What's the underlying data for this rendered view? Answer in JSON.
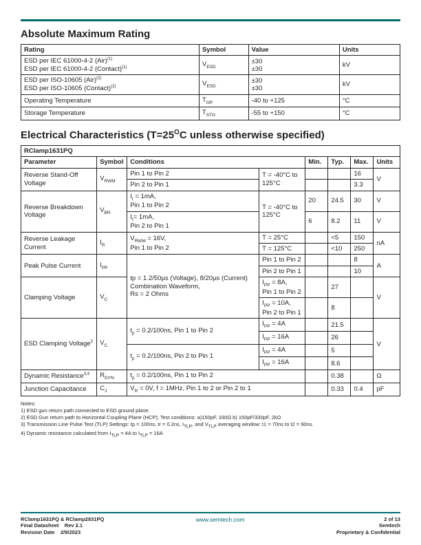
{
  "section1_title": "Absolute Maximum Rating",
  "amr": {
    "headers": [
      "Rating",
      "Symbol",
      "Value",
      "Units"
    ],
    "rows": [
      {
        "rating_html": "ESD per IEC 61000-4-2 (Air)<span class='sup'>(1)</span><br>ESD per IEC 61000-4-2 (Contact)<span class='sup'>(1)</span>",
        "symbol_html": "V<span class='sub'>ESD</span>",
        "value": "±30<br>±30",
        "units": "kV"
      },
      {
        "rating_html": "ESD per ISO-10605 (Air)<span class='sup'>(2)</span><br>ESD per ISO-10605 (Contact)<span class='sup'>(2)</span>",
        "symbol_html": "V<span class='sub'>ESD</span>",
        "value": "±30<br>±30",
        "units": "kV"
      },
      {
        "rating_html": "Operating Temperature",
        "symbol_html": "T<span class='sub'>OP</span>",
        "value": "-40 to +125",
        "units": "°C"
      },
      {
        "rating_html": "Storage Temperature",
        "symbol_html": "T<span class='sub'>STG</span>",
        "value": "-55 to +150",
        "units": "°C"
      }
    ]
  },
  "section2_title_html": "Electrical Characteristics (T=25<span style='font-size:10px;vertical-align:super'>O</span>C unless otherwise specified)",
  "partname": "RClamp1631PQ",
  "ec_headers": [
    "Parameter",
    "Symbol",
    "Conditions",
    "Min.",
    "Typ.",
    "Max.",
    "Units"
  ],
  "ec_rows": {
    "rswo_param": "Reverse Stand-Off Voltage",
    "rswo_sym": "V<span class='sub'>RWM</span>",
    "rswo_c1a": "Pin 1 to Pin 2",
    "rswo_c1b": "Pin 2 to Pin 1",
    "rswo_c2": "T = -40°C to 125°C",
    "rswo_max1": "16",
    "rswo_max2": "3.3",
    "rswo_u": "V",
    "rbv_param": "Reverse Breakdown Voltage",
    "rbv_sym": "V<span class='sub'>BR</span>",
    "rbv_c1a": "I<span class='sub'>t</span> = 1mA,<br>Pin 1 to Pin 2",
    "rbv_c1b": "I<span class='sub'>t</span>= 1mA,<br>Pin 2 to Pin 1",
    "rbv_c2": "T = -40°C to 125°C",
    "rbv_min1": "20",
    "rbv_typ1": "24.5",
    "rbv_max1": "30",
    "rbv_min2": "6",
    "rbv_typ2": "8.2",
    "rbv_max2": "11",
    "rbv_u": "V",
    "rlc_param": "Reverse Leakage Current",
    "rlc_sym": "I<span class='sub'>R</span>",
    "rlc_c1": "V<span class='sub'>RWM</span> = 16V,<br>Pin 1 to Pin 2",
    "rlc_c2a": "T = 25°C",
    "rlc_c2b": "T = 125°C",
    "rlc_typ1": "<5",
    "rlc_max1": "150",
    "rlc_typ2": "<10",
    "rlc_max2": "250",
    "rlc_u": "nA",
    "ppc_param": "Peak Pulse Current",
    "ppc_sym": "I<span class='sub'>PP</span>",
    "shared_cond": "tp = 1.2/50µs (Voltage), 8/20µs (Current) Combination Waveform,<br>Rs = 2 Ohms",
    "ppc_c2a": "Pin 1 to Pin 2",
    "ppc_c2b": "Pin 2 to Pin 1",
    "ppc_max1": "8",
    "ppc_max2": "10",
    "ppc_u": "A",
    "cv_param": "Clamping Voltage",
    "cv_sym": "V<span class='sub'>C</span>",
    "cv_c2a": "I<span class='sub'>PP</span> = 8A,<br>Pin 1 to Pin 2",
    "cv_c2b": "I<span class='sub'>PP</span> = 10A,<br>Pin 2 to Pin 1",
    "cv_typ1": "27",
    "cv_typ2": "8",
    "cv_u": "V",
    "ecv_param": "ESD Clamping Voltage<span class='sup'>3</span>",
    "ecv_sym": "V<span class='sub'>C</span>",
    "ecv_c1a": "t<span class='sub'>p</span> = 0.2/100ns, Pin 1 to Pin 2",
    "ecv_c1b": "t<span class='sub'>p</span> = 0.2/100ns, Pin 2 to Pin 1",
    "ecv_c2a": "I<span class='sub'>PP</span> = 4A",
    "ecv_c2b": "I<span class='sub'>PP</span> = 16A",
    "ecv_c2c": "I<span class='sub'>PP</span> = 4A",
    "ecv_c2d": "I<span class='sub'>PP</span> = 16A",
    "ecv_typ1": "21.5",
    "ecv_typ2": "26",
    "ecv_typ3": "5",
    "ecv_typ4": "8.6",
    "ecv_u": "V",
    "dr_param": "Dynamic Resistance<span class='sup'>3,4</span>",
    "dr_sym": "R<span class='sub'>DYN</span>",
    "dr_cond": "t<span class='sub'>p</span> = 0.2/100ns, Pin 1 to Pin 2",
    "dr_typ": "0.38",
    "dr_u": "Ω",
    "jc_param": "Junction Capacitance",
    "jc_sym": "C<span class='sub'>J</span>",
    "jc_cond": "V<span class='sub'>R</span> = 0V, f = 1MHz, Pin 1 to  2 or Pin 2 to 1",
    "jc_typ": "0.33",
    "jc_max": "0.4",
    "jc_u": "pF"
  },
  "notes_title": "Notes:",
  "notes": [
    "1) ESD gun return path connected to ESD ground plane.",
    "2) ESD Gun return path to Horizontal Coupling Plane (HCP); Test conditions: a)150pF, 330Ω b) 150pF/330pF, 2kΩ",
    "3) Transmission Line Pulse Test (TLP) Settings: tp = 100ns, tr = 0.2ns, I<span class='sub'>TLP</span>, and V<span class='sub'>TLP</span> averaging window: t1 = 70ns to t2 = 90ns.",
    "4) Dynamic resistance calculated from I<span class='sub'>TLP</span> = 4A to I<span class='sub'>TLP</span> = 16A"
  ],
  "footer": {
    "l1": "RClamp1631PQ & RClamp2831PQ",
    "l2a": "Final Datasheet",
    "l2b": "Rev 2.1",
    "l3a": "Revision Date",
    "l3b": "2/9/2023",
    "center": "www.semtech.com",
    "r1": "2 of 13",
    "r2": "Semtech",
    "r3": "Proprietary & Confidential"
  }
}
